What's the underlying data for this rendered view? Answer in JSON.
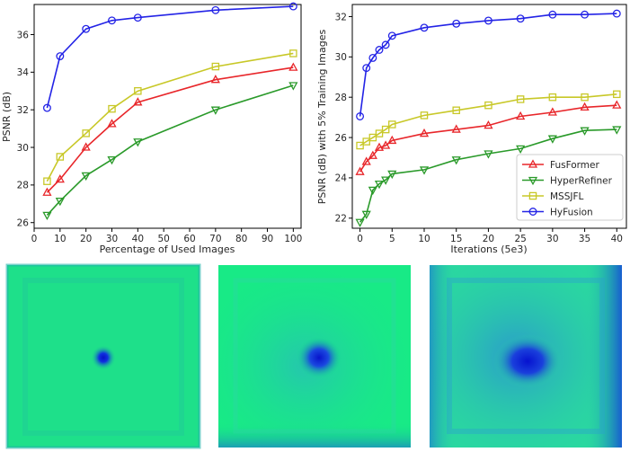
{
  "chart_data": [
    {
      "type": "line",
      "xlabel": "Percentage of Used Images",
      "ylabel": "PSNR (dB)",
      "xlim": [
        0,
        103
      ],
      "ylim": [
        25.7,
        37.6
      ],
      "xticks": [
        0,
        10,
        20,
        30,
        40,
        50,
        60,
        70,
        80,
        90,
        100
      ],
      "yticks": [
        26,
        28,
        30,
        32,
        34,
        36
      ],
      "x": [
        5,
        10,
        20,
        30,
        40,
        70,
        100
      ],
      "grid": false,
      "legend": "none",
      "series": [
        {
          "name": "FusFormer",
          "marker": "triangle-up",
          "color": "#e8262a",
          "values": [
            27.6,
            28.3,
            30.0,
            31.25,
            32.4,
            33.6,
            34.25
          ]
        },
        {
          "name": "HyperRefiner",
          "marker": "triangle-down",
          "color": "#2a9a2a",
          "values": [
            26.4,
            27.15,
            28.5,
            29.35,
            30.3,
            32.0,
            33.3
          ]
        },
        {
          "name": "MSSJFL",
          "marker": "square",
          "color": "#c8c828",
          "values": [
            28.2,
            29.5,
            30.75,
            32.05,
            33.0,
            34.3,
            35.0
          ]
        },
        {
          "name": "HyFusion",
          "marker": "circle",
          "color": "#2323e6",
          "values": [
            32.1,
            34.85,
            36.3,
            36.75,
            36.9,
            37.3,
            37.5
          ]
        }
      ]
    },
    {
      "type": "line",
      "xlabel": "Iterations (5e3)",
      "ylabel": "PSNR (dB) with 5% Training Images",
      "xlim": [
        -1.2,
        41.5
      ],
      "ylim": [
        21.5,
        32.6
      ],
      "xticks": [
        0,
        5,
        10,
        15,
        20,
        25,
        30,
        35,
        40
      ],
      "yticks": [
        22,
        24,
        26,
        28,
        30,
        32
      ],
      "x": [
        0,
        1,
        2,
        3,
        4,
        5,
        10,
        15,
        20,
        25,
        30,
        35,
        40
      ],
      "grid": false,
      "legend": "lower-right",
      "series": [
        {
          "name": "FusFormer",
          "marker": "triangle-up",
          "color": "#e8262a",
          "values": [
            24.3,
            24.8,
            25.1,
            25.5,
            25.6,
            25.85,
            26.2,
            26.4,
            26.6,
            27.05,
            27.25,
            27.5,
            27.6
          ]
        },
        {
          "name": "HyperRefiner",
          "marker": "triangle-down",
          "color": "#2a9a2a",
          "values": [
            21.8,
            22.2,
            23.4,
            23.7,
            23.9,
            24.2,
            24.4,
            24.9,
            25.2,
            25.45,
            25.95,
            26.35,
            26.4
          ]
        },
        {
          "name": "MSSJFL",
          "marker": "square",
          "color": "#c8c828",
          "values": [
            25.6,
            25.8,
            26.0,
            26.2,
            26.4,
            26.65,
            27.1,
            27.35,
            27.6,
            27.9,
            28.0,
            28.0,
            28.15
          ]
        },
        {
          "name": "HyFusion",
          "marker": "circle",
          "color": "#2323e6",
          "values": [
            27.05,
            29.45,
            29.95,
            30.35,
            30.6,
            31.05,
            31.45,
            31.65,
            31.8,
            31.9,
            32.1,
            32.1,
            32.15
          ]
        }
      ]
    }
  ],
  "heatmaps": [
    {
      "background": "#1ee08a",
      "blob_color": "#0a1ad8",
      "spread": "small"
    },
    {
      "background": "#18ea86",
      "blob_color": "#0a20d4",
      "spread": "medium"
    },
    {
      "background": "#2ad8a0",
      "blob_color": "#0a18d6",
      "spread": "large"
    }
  ]
}
